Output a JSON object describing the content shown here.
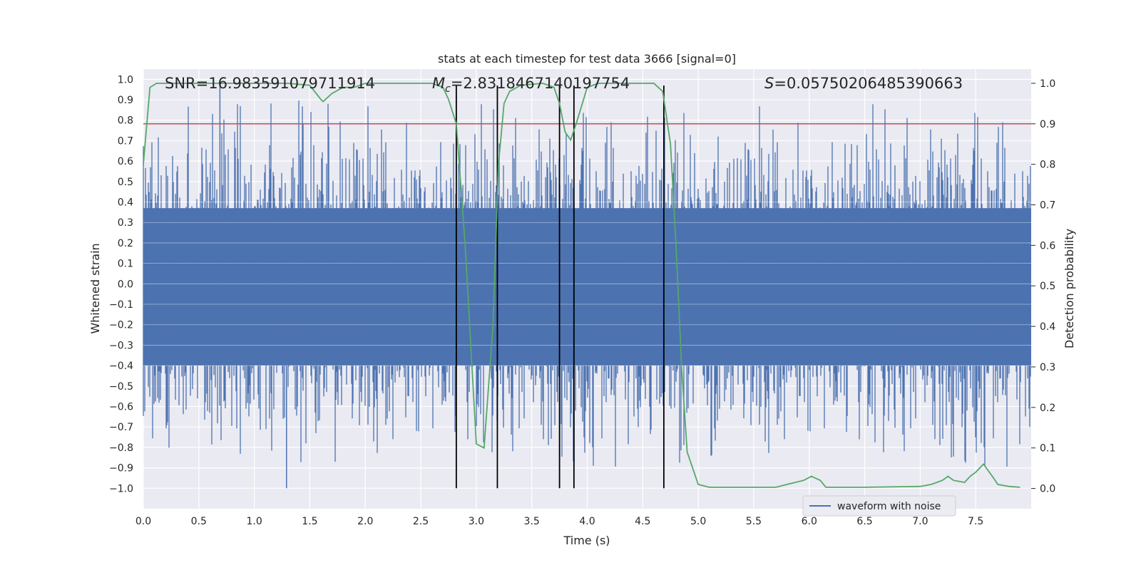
{
  "chart_data": {
    "type": "line",
    "title": "stats at each timestep for test data 3666 [signal=0]",
    "xlabel": "Time (s)",
    "ylabel": "Whitened strain",
    "y2label": "Detection probability",
    "xlim": [
      0.0,
      8.0
    ],
    "ylim": [
      -1.1,
      1.05
    ],
    "y2lim": [
      -0.05,
      1.035
    ],
    "x_ticks": [
      0.0,
      0.5,
      1.0,
      1.5,
      2.0,
      2.5,
      3.0,
      3.5,
      4.0,
      4.5,
      5.0,
      5.5,
      6.0,
      6.5,
      7.0,
      7.5
    ],
    "x_tick_labels": [
      "0.0",
      "0.5",
      "1.0",
      "1.5",
      "2.0",
      "2.5",
      "3.0",
      "3.5",
      "4.0",
      "4.5",
      "5.0",
      "5.5",
      "6.0",
      "6.5",
      "7.0",
      "7.5"
    ],
    "y_ticks": [
      1.0,
      0.9,
      0.8,
      0.7,
      0.6,
      0.5,
      0.4,
      0.3,
      0.2,
      0.1,
      0.0,
      -0.1,
      -0.2,
      -0.3,
      -0.4,
      -0.5,
      -0.6,
      -0.7,
      -0.8,
      -0.9,
      -1.0
    ],
    "y_tick_labels": [
      "1.0",
      "0.9",
      "0.8",
      "0.7",
      "0.6",
      "0.5",
      "0.4",
      "0.3",
      "0.2",
      "0.1",
      "0.0",
      "−0.1",
      "−0.2",
      "−0.3",
      "−0.4",
      "−0.5",
      "−0.6",
      "−0.7",
      "−0.8",
      "−0.9",
      "−1.0"
    ],
    "y2_ticks": [
      1.0,
      0.9,
      0.8,
      0.7,
      0.6,
      0.5,
      0.4,
      0.3,
      0.2,
      0.1,
      0.0
    ],
    "y2_tick_labels": [
      "1.0",
      "0.9",
      "0.8",
      "0.7",
      "0.6",
      "0.5",
      "0.4",
      "0.3",
      "0.2",
      "0.1",
      "0.0"
    ],
    "grid": true,
    "background": "#eaeaf2",
    "annotations": {
      "snr": "SNR=16.983591079711914",
      "mc_symbol": "M",
      "mc_subscript": "c",
      "mc_value": "=2.8318467140197754",
      "s_symbol": "S",
      "s_value": "=0.05750206485390663"
    },
    "threshold": {
      "value": 0.9,
      "axis": "y2",
      "color": "#c44e52"
    },
    "vertical_markers": {
      "x": [
        2.82,
        3.19,
        3.75,
        3.88,
        4.69
      ],
      "ymin": -1.0,
      "ymax": 0.97,
      "color": "#000000"
    },
    "series": [
      {
        "name": "waveform with noise",
        "color": "#4c72b0",
        "axis": "y",
        "kind": "dense-noise",
        "duration_s": 8.0,
        "approx_amplitude_std": 0.27,
        "extremes": {
          "max": 0.99,
          "min": -1.0
        }
      },
      {
        "name": "detection probability",
        "color": "#55a868",
        "axis": "y2",
        "x": [
          0.0,
          0.06,
          0.12,
          0.2,
          0.3,
          0.5,
          0.8,
          1.0,
          1.3,
          1.5,
          1.6,
          1.62,
          1.7,
          1.8,
          1.9,
          2.0,
          2.2,
          2.5,
          2.6,
          2.7,
          2.75,
          2.82,
          2.9,
          3.0,
          3.07,
          3.15,
          3.2,
          3.25,
          3.3,
          3.4,
          3.6,
          3.7,
          3.75,
          3.8,
          3.85,
          3.9,
          4.0,
          4.1,
          4.3,
          4.5,
          4.6,
          4.68,
          4.75,
          4.8,
          4.85,
          4.9,
          5.0,
          5.1,
          5.5,
          5.7,
          5.8,
          5.95,
          6.02,
          6.1,
          6.15,
          6.3,
          6.5,
          7.0,
          7.1,
          7.2,
          7.25,
          7.3,
          7.4,
          7.45,
          7.5,
          7.57,
          7.65,
          7.7,
          7.8,
          7.9
        ],
        "y": [
          0.8,
          0.99,
          1.0,
          1.0,
          1.0,
          1.0,
          1.0,
          1.0,
          1.0,
          0.995,
          0.96,
          0.955,
          0.975,
          0.99,
          0.99,
          1.0,
          1.0,
          1.0,
          1.0,
          0.99,
          0.96,
          0.9,
          0.6,
          0.11,
          0.1,
          0.4,
          0.8,
          0.95,
          0.98,
          0.995,
          1.0,
          0.99,
          0.95,
          0.88,
          0.86,
          0.9,
          0.99,
          1.0,
          1.0,
          1.0,
          1.0,
          0.98,
          0.85,
          0.6,
          0.3,
          0.09,
          0.01,
          0.003,
          0.003,
          0.003,
          0.01,
          0.02,
          0.03,
          0.02,
          0.003,
          0.003,
          0.003,
          0.005,
          0.01,
          0.02,
          0.03,
          0.02,
          0.015,
          0.03,
          0.04,
          0.06,
          0.03,
          0.01,
          0.005,
          0.003
        ]
      }
    ],
    "legend": {
      "placement": "lower-right",
      "entries": [
        "waveform with noise"
      ]
    }
  }
}
